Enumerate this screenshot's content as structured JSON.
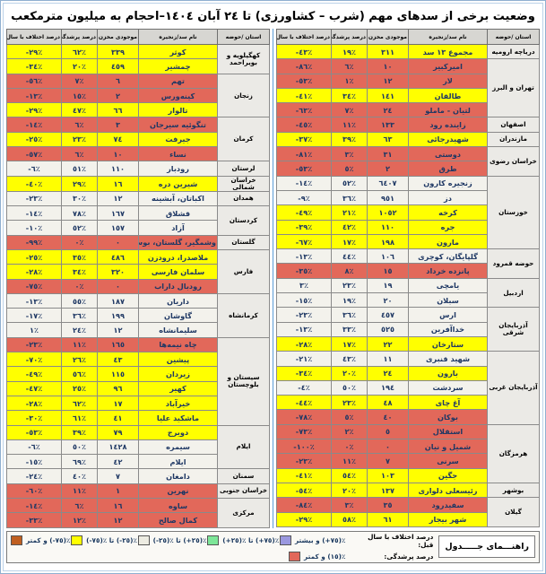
{
  "title": "وضعیت برخی از سدهای مهم (شرب – کشاورزی) تا ٢٤ آبان ١٤٠٤–احجام به میلیون مترمکعب",
  "columns": [
    "استان /حوضه",
    "نام سد/زنجیره",
    "موجودی مخزن",
    "درصد پرشدگی",
    "درصد اختلاف با سال قبل"
  ],
  "colors": {
    "row_yellow": "#FFFF00",
    "row_red": "#E2685A",
    "row_white": "#F3F2EC",
    "province_bg": "#EBEAE6",
    "header_bg": "#D7D6D2",
    "legend_orange": "#C05F20",
    "legend_green": "#7DE698",
    "legend_purple": "#9A98DF",
    "frame_blue": "#5B9BD5",
    "text_navy": "#1F3864"
  },
  "right_table": {
    "groups": [
      {
        "province": "دریاچه ارومیه",
        "dams": [
          {
            "name": "مجموع ١٣ سد",
            "volume": "٣١١",
            "fill": "١٩٪",
            "diff": "-٤٣٪",
            "color": "yellow"
          }
        ]
      },
      {
        "province": "تهران و البرز",
        "dams": [
          {
            "name": "امیرکبیر",
            "volume": "١٠",
            "fill": "٦٪",
            "diff": "-٨٦٪",
            "color": "red"
          },
          {
            "name": "لار",
            "volume": "١٢",
            "fill": "١٪",
            "diff": "-٥٣٪",
            "color": "red"
          },
          {
            "name": "طالقان",
            "volume": "١٤١",
            "fill": "٣٤٪",
            "diff": "-٤١٪",
            "color": "yellow"
          },
          {
            "name": "لتیان - ماملو",
            "volume": "٢٤",
            "fill": "٧٪",
            "diff": "-٦٣٪",
            "color": "red"
          }
        ]
      },
      {
        "province": "اصفهان",
        "dams": [
          {
            "name": "زاینده رود",
            "volume": "١٣٣",
            "fill": "١١٪",
            "diff": "-٤٥٪",
            "color": "red"
          }
        ]
      },
      {
        "province": "مازندران",
        "dams": [
          {
            "name": "شهیدرجائی",
            "volume": "٦٣",
            "fill": "٣٩٪",
            "diff": "-٣٧٪",
            "color": "yellow"
          }
        ]
      },
      {
        "province": "خراسان رضوی",
        "dams": [
          {
            "name": "دوستی",
            "volume": "٣١",
            "fill": "٣٪",
            "diff": "-٨١٪",
            "color": "red"
          },
          {
            "name": "طرق",
            "volume": "٢",
            "fill": "٥٪",
            "diff": "-٥٣٪",
            "color": "red"
          }
        ]
      },
      {
        "province": "خوزستان",
        "dams": [
          {
            "name": "زنجیره کارون",
            "volume": "٦٤٠٧",
            "fill": "٥٢٪",
            "diff": "-١٤٪",
            "color": "white"
          },
          {
            "name": "دز",
            "volume": "٩٥١",
            "fill": "٣٦٪",
            "diff": "-٩٪",
            "color": "white"
          },
          {
            "name": "کرخه",
            "volume": "١٠٥٢",
            "fill": "٢١٪",
            "diff": "-٤٩٪",
            "color": "yellow"
          },
          {
            "name": "جره",
            "volume": "١١٠",
            "fill": "٤٢٪",
            "diff": "-٣٩٪",
            "color": "yellow"
          },
          {
            "name": "مارون",
            "volume": "١٩٨",
            "fill": "١٧٪",
            "diff": "-٦٧٪",
            "color": "yellow"
          }
        ]
      },
      {
        "province": "حوضه قمرود",
        "dams": [
          {
            "name": "گلپایگان، کوچری",
            "volume": "١٠٦",
            "fill": "٤٤٪",
            "diff": "-١٣٪",
            "color": "white"
          },
          {
            "name": "پانزده خرداد",
            "volume": "١٥",
            "fill": "٨٪",
            "diff": "-٣٥٪",
            "color": "red"
          }
        ]
      },
      {
        "province": "اردبیل",
        "dams": [
          {
            "name": "یامچی",
            "volume": "١٩",
            "fill": "٢٣٪",
            "diff": "٣٪",
            "color": "white"
          },
          {
            "name": "سبلان",
            "volume": "٢٠",
            "fill": "١٩٪",
            "diff": "-١٥٪",
            "color": "white"
          }
        ]
      },
      {
        "province": "آذربایجان شرقی",
        "dams": [
          {
            "name": "ارس",
            "volume": "٤٥٧",
            "fill": "٣٦٪",
            "diff": "-٢٣٪",
            "color": "white"
          },
          {
            "name": "خداآفرین",
            "volume": "٥٢٥",
            "fill": "٣٣٪",
            "diff": "-١٣٪",
            "color": "white"
          },
          {
            "name": "ستارخان",
            "volume": "٢٢",
            "fill": "١٧٪",
            "diff": "-٢٨٪",
            "color": "yellow"
          }
        ]
      },
      {
        "province": "آذربایجان غربی",
        "dams": [
          {
            "name": "شهید قنبری",
            "volume": "١١",
            "fill": "٤٣٪",
            "diff": "-٢١٪",
            "color": "white"
          },
          {
            "name": "بارون",
            "volume": "٢٤",
            "fill": "٢٠٪",
            "diff": "-٣٤٪",
            "color": "yellow"
          },
          {
            "name": "سردشت",
            "volume": "١٩٤",
            "fill": "٥٠٪",
            "diff": "-٤٪",
            "color": "white"
          },
          {
            "name": "آغ چای",
            "volume": "٤٨",
            "fill": "٢٣٪",
            "diff": "-٤٤٪",
            "color": "yellow"
          },
          {
            "name": "بوکان",
            "volume": "٤٠",
            "fill": "٥٪",
            "diff": "-٧٨٪",
            "color": "red"
          }
        ]
      },
      {
        "province": "هرمزگان",
        "dams": [
          {
            "name": "استقلال",
            "volume": "٥",
            "fill": "٢٪",
            "diff": "-٧٣٪",
            "color": "red"
          },
          {
            "name": "شمیل و نیان",
            "volume": "٠",
            "fill": "٠٪",
            "diff": "-١٠٠٪",
            "color": "red"
          },
          {
            "name": "سرنی",
            "volume": "٧",
            "fill": "١١٪",
            "diff": "-٢٣٪",
            "color": "red"
          },
          {
            "name": "جگین",
            "volume": "١٠٣",
            "fill": "٥٤٪",
            "diff": "-٤١٪",
            "color": "yellow"
          }
        ]
      },
      {
        "province": "بوشهر",
        "dams": [
          {
            "name": "رئیسعلی دلواری",
            "volume": "١٣٧",
            "fill": "٢٠٪",
            "diff": "-٥٤٪",
            "color": "yellow"
          }
        ]
      },
      {
        "province": "گیلان",
        "dams": [
          {
            "name": "سفیدرود",
            "volume": "٣٥",
            "fill": "٣٪",
            "diff": "-٨٤٪",
            "color": "red"
          },
          {
            "name": "شهر بیجار",
            "volume": "٦١",
            "fill": "٥٨٪",
            "diff": "-٢٩٪",
            "color": "yellow"
          }
        ]
      }
    ]
  },
  "left_table": {
    "groups": [
      {
        "province": "کهگیلویه و بویراحمد",
        "dams": [
          {
            "name": "کوثر",
            "volume": "٣٣٩",
            "fill": "٦٢٪",
            "diff": "-٢٩٪",
            "color": "yellow"
          },
          {
            "name": "چمشیر",
            "volume": "٤٥٩",
            "fill": "٢٠٪",
            "diff": "-٣٤٪",
            "color": "yellow"
          }
        ]
      },
      {
        "province": "زنجان",
        "dams": [
          {
            "name": "تهم",
            "volume": "٦",
            "fill": "٧٪",
            "diff": "-٥٦٪",
            "color": "red"
          },
          {
            "name": "کینه‌ورس",
            "volume": "٢",
            "fill": "١٥٪",
            "diff": "-١٣٪",
            "color": "red"
          },
          {
            "name": "تالوار",
            "volume": "٦٦",
            "fill": "٤٧٪",
            "diff": "-٢٩٪",
            "color": "yellow"
          }
        ]
      },
      {
        "province": "کرمان",
        "dams": [
          {
            "name": "تنگوئیه سیرجان",
            "volume": "٣",
            "fill": "٦٪",
            "diff": "-١٤٪",
            "color": "red"
          },
          {
            "name": "جیرفت",
            "volume": "٧٤",
            "fill": "٢٣٪",
            "diff": "-٢٥٪",
            "color": "yellow"
          },
          {
            "name": "نساء",
            "volume": "١٠",
            "fill": "٦٪",
            "diff": "-٥٧٪",
            "color": "red"
          }
        ]
      },
      {
        "province": "لرستان",
        "dams": [
          {
            "name": "رودبار",
            "volume": "١١٠",
            "fill": "٥١٪",
            "diff": "-٦٪",
            "color": "white"
          }
        ]
      },
      {
        "province": "خراسان شمالی",
        "dams": [
          {
            "name": "شیرین دره",
            "volume": "١٦",
            "fill": "٢٩٪",
            "diff": "-٤٠٪",
            "color": "yellow"
          }
        ]
      },
      {
        "province": "همدان",
        "dams": [
          {
            "name": "اکباتان، آبشینه",
            "volume": "١٢",
            "fill": "٣٠٪",
            "diff": "-٢٣٪",
            "color": "white"
          }
        ]
      },
      {
        "province": "کردستان",
        "dams": [
          {
            "name": "قشلاق",
            "volume": "١٦٧",
            "fill": "٧٨٪",
            "diff": "-١٤٪",
            "color": "white"
          },
          {
            "name": "آزاد",
            "volume": "١٥٧",
            "fill": "٥٢٪",
            "diff": "-١٠٪",
            "color": "white"
          }
        ]
      },
      {
        "province": "گلستان",
        "dams": [
          {
            "name": "وشمگیر، گلستان، بوستان",
            "volume": "٠",
            "fill": "٠٪",
            "diff": "-٩٩٪",
            "color": "red"
          }
        ]
      },
      {
        "province": "فارس",
        "dams": [
          {
            "name": "ملاصدرا، درودزن",
            "volume": "٤٨٦",
            "fill": "٣٥٪",
            "diff": "-٢٥٪",
            "color": "yellow"
          },
          {
            "name": "سلمان فارسی",
            "volume": "٣٢٠",
            "fill": "٣٤٪",
            "diff": "-٢٨٪",
            "color": "yellow"
          },
          {
            "name": "رودبال داراب",
            "volume": "٠",
            "fill": "٠٪",
            "diff": "-٧٥٪",
            "color": "red"
          }
        ]
      },
      {
        "province": "کرمانشاه",
        "dams": [
          {
            "name": "داریان",
            "volume": "١٨٧",
            "fill": "٥٥٪",
            "diff": "-١٣٪",
            "color": "white"
          },
          {
            "name": "گاوشان",
            "volume": "١٩٩",
            "fill": "٣٦٪",
            "diff": "-١٧٪",
            "color": "white"
          },
          {
            "name": "سلیمانشاه",
            "volume": "١٢",
            "fill": "٢٤٪",
            "diff": "١٪",
            "color": "white"
          }
        ]
      },
      {
        "province": "سیستان و بلوچستان",
        "dams": [
          {
            "name": "چاه نیمه‌ها",
            "volume": "١٦٥",
            "fill": "١١٪",
            "diff": "-٢٣٪",
            "color": "red"
          },
          {
            "name": "پیشین",
            "volume": "٤٣",
            "fill": "٢٦٪",
            "diff": "-٧٠٪",
            "color": "yellow"
          },
          {
            "name": "زیردان",
            "volume": "١١٥",
            "fill": "٥٦٪",
            "diff": "-٤٩٪",
            "color": "yellow"
          },
          {
            "name": "کهیر",
            "volume": "٩٦",
            "fill": "٢٥٪",
            "diff": "-٤٧٪",
            "color": "yellow"
          },
          {
            "name": "خیرآباد",
            "volume": "١٧",
            "fill": "٦٢٪",
            "diff": "-٢٨٪",
            "color": "yellow"
          },
          {
            "name": "ماشکید علیا",
            "volume": "٤١",
            "fill": "٦١٪",
            "diff": "-٣٠٪",
            "color": "yellow"
          }
        ]
      },
      {
        "province": "ایلام",
        "dams": [
          {
            "name": "دویرج",
            "volume": "٧٩",
            "fill": "٣٩٪",
            "diff": "-٥٣٪",
            "color": "yellow"
          },
          {
            "name": "سیمره",
            "volume": "١٤٢٨",
            "fill": "٥٠٪",
            "diff": "-٦٪",
            "color": "white"
          },
          {
            "name": "ایلام",
            "volume": "٤٢",
            "fill": "٦٩٪",
            "diff": "-١٥٪",
            "color": "white"
          }
        ]
      },
      {
        "province": "سمنان",
        "dams": [
          {
            "name": "دامغان",
            "volume": "٧",
            "fill": "٤٠٪",
            "diff": "-٢٤٪",
            "color": "white"
          }
        ]
      },
      {
        "province": "خراسان جنوبی",
        "dams": [
          {
            "name": "نهرین",
            "volume": "١",
            "fill": "١١٪",
            "diff": "-٦٠٪",
            "color": "red"
          }
        ]
      },
      {
        "province": "مرکزی",
        "dams": [
          {
            "name": "ساوه",
            "volume": "١٦",
            "fill": "٦٪",
            "diff": "-١٤٪",
            "color": "red"
          },
          {
            "name": "کمال صالح",
            "volume": "١٢",
            "fill": "١٢٪",
            "diff": "-٣٣٪",
            "color": "red"
          }
        ]
      }
    ]
  },
  "legend": {
    "title": "راهنـــمای جـــــدول",
    "diff_label": "درصد اختلاف با سال قبل:",
    "fill_label": "درصد پرشدگی:",
    "diff_items": [
      {
        "label": "⁦(+٧٥)٪⁩ و بیشتر",
        "color": "#9A98DF"
      },
      {
        "label": "⁦(+٧٥)٪⁩ تا ⁦(+٢٥)٪⁩",
        "color": "#7DE698"
      },
      {
        "label": "⁦(+٢٥)٪⁩ تا ⁦(-٢٥)٪⁩",
        "color": "#EDECE2"
      },
      {
        "label": "⁦(-٢٥)٪⁩ تا ⁦(-٧٥)٪⁩",
        "color": "#FFFF00"
      },
      {
        "label": "⁦(-٧٥)٪⁩ و کمتر",
        "color": "#C05F20"
      }
    ],
    "fill_items": [
      {
        "label": "⁦(١٥)٪⁩ و کمتر",
        "color": "#E2685A"
      }
    ]
  }
}
